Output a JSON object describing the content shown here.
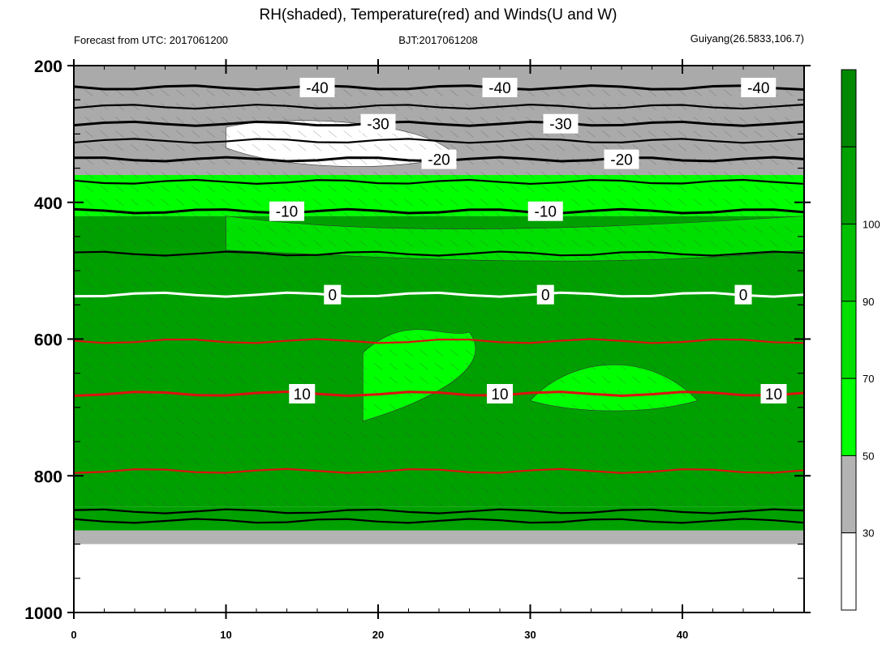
{
  "chart_data": {
    "type": "contour",
    "title": "RH(shaded), Temperature(red) and Winds(U and W)",
    "subtitle_left": "Forecast from UTC: 2017061200",
    "subtitle_center": "BJT:2017061208",
    "subtitle_right": "Guiyang(26.5833,106.7)",
    "xlim": [
      0,
      48
    ],
    "ylim": [
      1000,
      200
    ],
    "x_ticks": [
      "0",
      "10",
      "20",
      "30",
      "40"
    ],
    "y_ticks": [
      "200",
      "400",
      "600",
      "800",
      "1000"
    ],
    "y_minor": [
      250,
      300,
      350,
      450,
      500,
      550,
      650,
      700,
      750,
      850,
      900,
      950
    ],
    "rh_bands": [
      {
        "range": [
          900,
          880
        ],
        "color": "#b3b3b3"
      },
      {
        "range": [
          880,
          845
        ],
        "color": "#00a000"
      },
      {
        "range": [
          845,
          420
        ],
        "color": "#00a000"
      },
      {
        "range": [
          420,
          360
        ],
        "color": "#00ff00"
      },
      {
        "range": [
          360,
          200
        ],
        "color": "#aaaaaa"
      }
    ],
    "temperature_contours": [
      {
        "label": "-40",
        "color": "#000000",
        "pressure": 232,
        "label_positions": [
          16,
          28,
          45
        ]
      },
      {
        "label": "-30",
        "color": "#000000",
        "pressure": 285,
        "label_positions": [
          20,
          32
        ]
      },
      {
        "label": "-20",
        "color": "#000000",
        "pressure": 337,
        "label_positions": [
          24,
          36
        ]
      },
      {
        "label": "-10",
        "color": "#000000",
        "pressure": 413,
        "label_positions": [
          14,
          31
        ]
      },
      {
        "label": "0",
        "color": "#ffffff",
        "pressure": 535,
        "label_positions": [
          17,
          31,
          44
        ]
      },
      {
        "label": "10",
        "color": "#dd1111",
        "pressure": 680,
        "label_positions": [
          15,
          28,
          46
        ]
      }
    ],
    "extra_lines": [
      {
        "color": "#000000",
        "pressure": 260
      },
      {
        "color": "#000000",
        "pressure": 310
      },
      {
        "color": "#000000",
        "pressure": 370
      },
      {
        "color": "#000000",
        "pressure": 475
      },
      {
        "color": "#dd1111",
        "pressure": 603
      },
      {
        "color": "#dd1111",
        "pressure": 793
      },
      {
        "color": "#000000",
        "pressure": 852
      },
      {
        "color": "#000000",
        "pressure": 866
      }
    ],
    "colorbar": {
      "levels": [
        "30",
        "50",
        "70",
        "90",
        "100"
      ],
      "colors": [
        "#ffffff",
        "#b3b3b3",
        "#00ff00",
        "#00e000",
        "#00c000",
        "#00a000",
        "#008800"
      ]
    }
  }
}
